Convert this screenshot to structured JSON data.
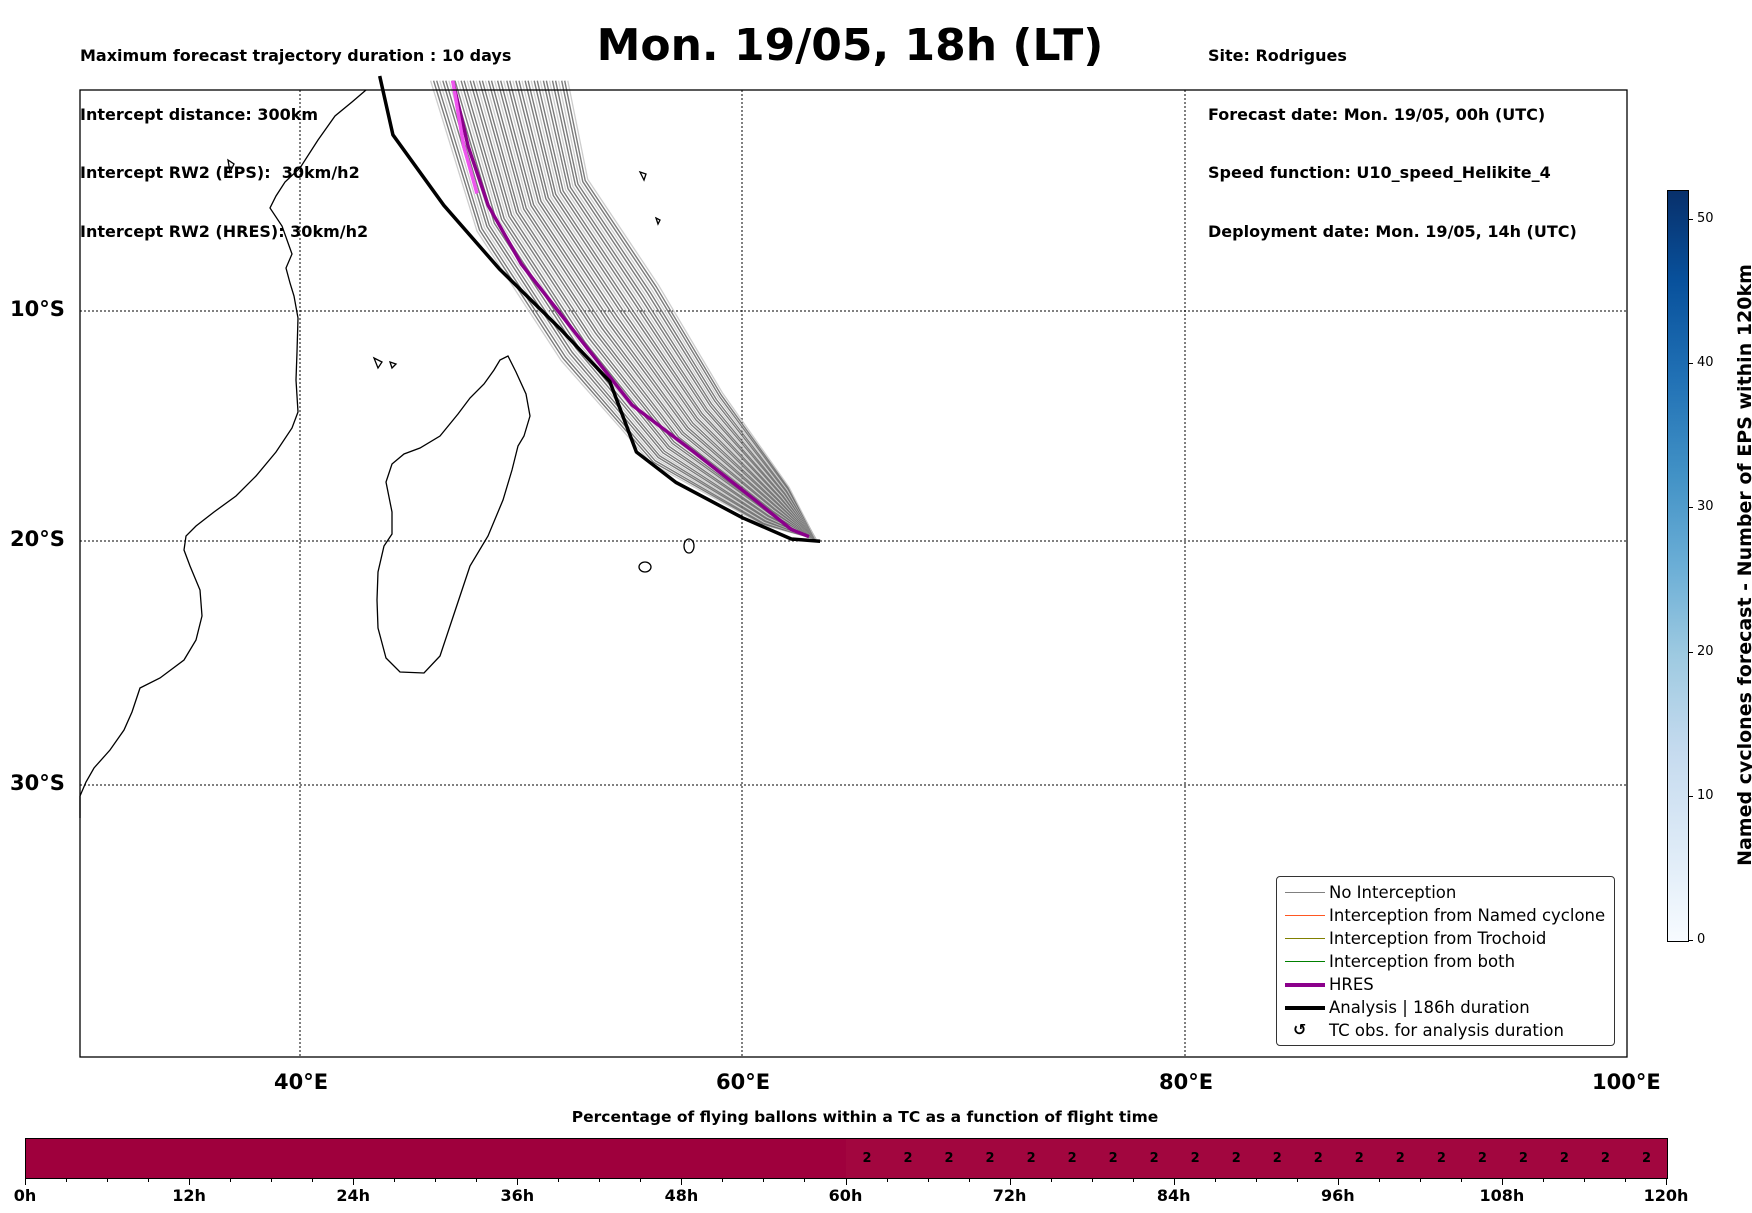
{
  "header": {
    "left_lines": [
      "Maximum forecast trajectory duration : 10 days",
      "Intercept distance: 300km",
      "Intercept RW2 (EPS):  30km/h2",
      "Intercept RW2 (HRES): 30km/h2"
    ],
    "title": "Mon. 19/05, 18h (LT)",
    "right_lines": [
      "Site: Rodrigues",
      "Forecast date: Mon. 19/05, 00h (UTC)",
      "Speed function: U10_speed_Helikite_4",
      "Deployment date: Mon. 19/05, 14h (UTC)"
    ]
  },
  "map": {
    "lat_labels": [
      "10°S",
      "20°S",
      "30°S"
    ],
    "lon_labels": [
      "40°E",
      "60°E",
      "80°E",
      "100°E"
    ]
  },
  "legend": {
    "items": [
      {
        "label": "No Interception",
        "color": "#808080"
      },
      {
        "label": "Interception from Named cyclone",
        "color": "#ff5722"
      },
      {
        "label": "Interception from Trochoid",
        "color": "#808000"
      },
      {
        "label": "Interception from both",
        "color": "#008000"
      },
      {
        "label": "HRES",
        "color": "#8b008b"
      },
      {
        "label": "Analysis | 186h duration",
        "color": "#000000"
      },
      {
        "label": "TC obs. for analysis duration",
        "icon": "cyclone-icon"
      }
    ]
  },
  "colorbar": {
    "label": "Named cyclones forecast - Number of EPS within 120km",
    "ticks": [
      "0",
      "10",
      "20",
      "30",
      "40",
      "50"
    ],
    "max": 52
  },
  "percentage_bar": {
    "title": "Percentage of flying ballons within a TC as a function of flight time",
    "hour_labels": [
      "0h",
      "12h",
      "24h",
      "36h",
      "48h",
      "60h",
      "72h",
      "84h",
      "96h",
      "108h",
      "120h"
    ],
    "cell_values": [
      "2",
      "2",
      "2",
      "2",
      "2",
      "2",
      "2",
      "2",
      "2",
      "2",
      "2",
      "2",
      "2",
      "2",
      "2",
      "2",
      "2",
      "2",
      "2",
      "2"
    ],
    "cells_start_hour": 60,
    "cell_step_hours": 3
  }
}
